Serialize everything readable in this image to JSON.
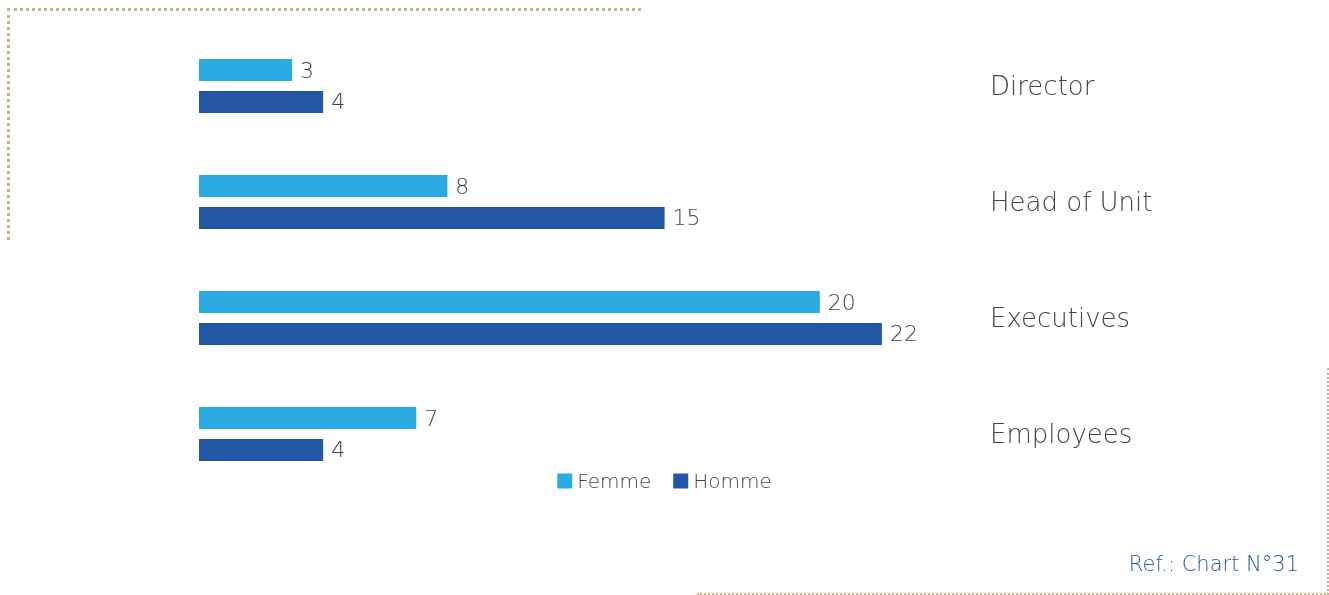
{
  "chart_data": {
    "type": "bar",
    "orientation": "horizontal",
    "categories": [
      "Director",
      "Head of Unit",
      "Executives",
      "Employees"
    ],
    "series": [
      {
        "name": "Femme",
        "color": "#29abe2",
        "values": [
          3,
          8,
          20,
          7
        ]
      },
      {
        "name": "Homme",
        "color": "#2356a4",
        "values": [
          4,
          15,
          22,
          4
        ]
      }
    ],
    "data_labels": true,
    "legend": "bottom",
    "annotations": [
      "Ref.: Chart N°31"
    ]
  }
}
